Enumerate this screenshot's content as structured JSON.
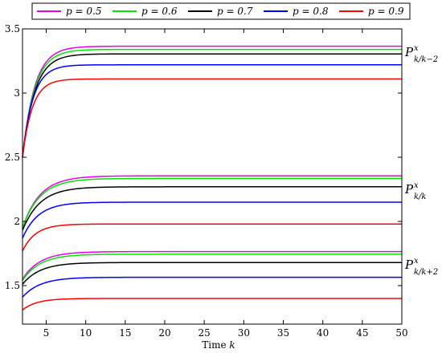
{
  "chart_data": {
    "type": "line",
    "xlabel": "Time k",
    "ylabel": "",
    "xlim": [
      2,
      50
    ],
    "ylim": [
      1.2,
      3.5
    ],
    "xticks": [
      5,
      10,
      15,
      20,
      25,
      30,
      35,
      40,
      45,
      50
    ],
    "yticks": [
      1.5,
      2,
      2.5,
      3,
      3.5
    ],
    "grid": false,
    "legend_position": "top",
    "legend": [
      {
        "label": "p = 0.5",
        "color": "#e600e6"
      },
      {
        "label": "p = 0.6",
        "color": "#00e600"
      },
      {
        "label": "p = 0.7",
        "color": "#000000"
      },
      {
        "label": "p = 0.8",
        "color": "#0000ff"
      },
      {
        "label": "p = 0.9",
        "color": "#ff0000"
      }
    ],
    "groups": [
      {
        "annotation": {
          "base": "P",
          "sup": "x",
          "sub": "k/k−2"
        },
        "curves": [
          {
            "p": 0.5,
            "color": "#e600e6",
            "start": 2.5,
            "final": 3.365,
            "rate": 0.65
          },
          {
            "p": 0.6,
            "color": "#00e600",
            "start": 2.5,
            "final": 3.34,
            "rate": 0.65
          },
          {
            "p": 0.7,
            "color": "#000000",
            "start": 2.5,
            "final": 3.305,
            "rate": 0.65
          },
          {
            "p": 0.8,
            "color": "#0000ff",
            "start": 2.5,
            "final": 3.22,
            "rate": 0.75
          },
          {
            "p": 0.9,
            "color": "#ff0000",
            "start": 2.5,
            "final": 3.11,
            "rate": 0.8
          }
        ]
      },
      {
        "annotation": {
          "base": "P",
          "sup": "x",
          "sub": "k/k"
        },
        "curves": [
          {
            "p": 0.5,
            "color": "#e600e6",
            "start": 1.95,
            "final": 2.355,
            "rate": 0.45
          },
          {
            "p": 0.6,
            "color": "#00e600",
            "start": 1.95,
            "final": 2.335,
            "rate": 0.45
          },
          {
            "p": 0.7,
            "color": "#000000",
            "start": 1.93,
            "final": 2.27,
            "rate": 0.45
          },
          {
            "p": 0.8,
            "color": "#0000ff",
            "start": 1.87,
            "final": 2.15,
            "rate": 0.5
          },
          {
            "p": 0.9,
            "color": "#ff0000",
            "start": 1.77,
            "final": 1.98,
            "rate": 0.6
          }
        ]
      },
      {
        "annotation": {
          "base": "P",
          "sup": "x",
          "sub": "k/k+2"
        },
        "curves": [
          {
            "p": 0.5,
            "color": "#e600e6",
            "start": 1.55,
            "final": 1.765,
            "rate": 0.45
          },
          {
            "p": 0.6,
            "color": "#00e600",
            "start": 1.54,
            "final": 1.745,
            "rate": 0.45
          },
          {
            "p": 0.7,
            "color": "#000000",
            "start": 1.51,
            "final": 1.68,
            "rate": 0.45
          },
          {
            "p": 0.8,
            "color": "#0000ff",
            "start": 1.41,
            "final": 1.565,
            "rate": 0.45
          },
          {
            "p": 0.9,
            "color": "#ff0000",
            "start": 1.31,
            "final": 1.4,
            "rate": 0.55
          }
        ]
      }
    ]
  }
}
